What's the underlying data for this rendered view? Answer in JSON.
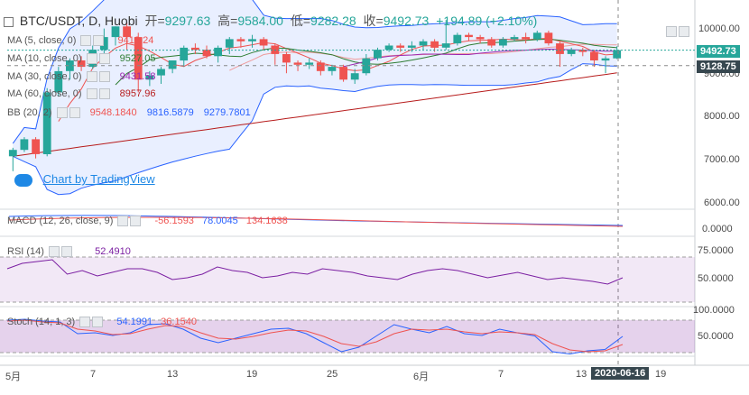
{
  "header": {
    "symbol": "BTC/USDT, D, Huobi",
    "open_label": "开=",
    "open": "9297.63",
    "high_label": "高=",
    "high": "9584.00",
    "low_label": "低=",
    "low": "9282.28",
    "close_label": "收=",
    "close": "9492.73",
    "change": "+194.89 (+2.10%)"
  },
  "indicators": {
    "ma5": {
      "label": "MA (5, close, 0)",
      "value": "9413.24"
    },
    "ma10": {
      "label": "MA (10, close, 0)",
      "value": "9527.05"
    },
    "ma30": {
      "label": "MA (30, close, 0)",
      "value": "9431.58"
    },
    "ma60": {
      "label": "MA (60, close, 0)",
      "value": "8957.96"
    },
    "bb": {
      "label": "BB (20, 2)",
      "basis": "9548.1840",
      "upper": "9816.5879",
      "lower": "9279.7801"
    },
    "macd": {
      "label": "MACD (12, 26, close, 9)",
      "hist": "-56.1593",
      "macd": "78.0045",
      "signal": "134.1638"
    },
    "rsi": {
      "label": "RSI (14)",
      "value": "52.4910"
    },
    "stoch": {
      "label": "Stoch (14, 1, 3)",
      "k": "54.1991",
      "d": "36.1540"
    }
  },
  "branding": {
    "text": "Chart by TradingView"
  },
  "price_axis": {
    "ticks": [
      "10000.00",
      "9000.00",
      "8000.00",
      "7000.00",
      "6000.00"
    ],
    "last_price": "9492.73",
    "crosshair_price": "9128.75"
  },
  "macd_axis": {
    "ticks": [
      "0.0000"
    ]
  },
  "rsi_axis": {
    "ticks": [
      "75.0000",
      "50.0000"
    ]
  },
  "stoch_axis": {
    "ticks": [
      "100.0000",
      "50.0000"
    ]
  },
  "time_axis": {
    "ticks": [
      "5月",
      "7",
      "13",
      "19",
      "25",
      "6月",
      "7",
      "13",
      "19"
    ],
    "crosshair_date": "2020-06-16"
  },
  "colors": {
    "up": "#26a69a",
    "down": "#ef5350",
    "bb": "#2962ff",
    "macd": "#2962ff",
    "signal": "#ef5350",
    "rsi": "#7b1fa2",
    "ma5": "#ef5350",
    "ma10": "#2e7d32",
    "ma30": "#9c27b0",
    "ma60": "#b71c1c"
  },
  "chart_data": {
    "type": "candlestick",
    "title": "BTC/USDT, D, Huobi",
    "ylim": [
      5800,
      10500
    ],
    "candles": [
      [
        7000,
        7150,
        6650,
        7200
      ],
      [
        7150,
        7400,
        7100,
        7450
      ],
      [
        7400,
        7050,
        6950,
        7450
      ],
      [
        7050,
        8500,
        7000,
        8600
      ],
      [
        8500,
        9000,
        8400,
        9100
      ],
      [
        9000,
        9250,
        8800,
        9300
      ],
      [
        9250,
        9100,
        9000,
        9350
      ],
      [
        9100,
        9500,
        9050,
        9600
      ],
      [
        9500,
        9800,
        9300,
        10000
      ],
      [
        9800,
        10050,
        9600,
        10050
      ],
      [
        10050,
        9800,
        9500,
        10150
      ],
      [
        9800,
        8800,
        8500,
        9900
      ],
      [
        8800,
        8900,
        8650,
        9000
      ],
      [
        8900,
        9050,
        8700,
        9100
      ],
      [
        9050,
        9250,
        8950,
        9250
      ],
      [
        9250,
        9550,
        9100,
        9600
      ],
      [
        9550,
        9500,
        9400,
        9650
      ],
      [
        9500,
        9350,
        9300,
        9600
      ],
      [
        9350,
        9550,
        9200,
        9600
      ],
      [
        9550,
        9750,
        9400,
        9800
      ],
      [
        9750,
        9700,
        9550,
        9800
      ],
      [
        9700,
        9750,
        9550,
        9850
      ],
      [
        9750,
        9600,
        9500,
        9800
      ],
      [
        9600,
        9400,
        9150,
        9650
      ],
      [
        9400,
        9200,
        8950,
        9450
      ],
      [
        9200,
        9150,
        9000,
        9250
      ],
      [
        9150,
        9200,
        9050,
        9300
      ],
      [
        9200,
        9000,
        8900,
        9250
      ],
      [
        9000,
        9100,
        8900,
        9150
      ],
      [
        9100,
        8800,
        8750,
        9150
      ],
      [
        8800,
        8950,
        8700,
        9050
      ],
      [
        8950,
        9300,
        8900,
        9400
      ],
      [
        9300,
        9500,
        9250,
        9550
      ],
      [
        9500,
        9600,
        9450,
        9650
      ],
      [
        9600,
        9550,
        9450,
        9650
      ],
      [
        9550,
        9600,
        9450,
        9700
      ],
      [
        9600,
        9700,
        9500,
        9750
      ],
      [
        9700,
        9550,
        9450,
        9750
      ],
      [
        9550,
        9650,
        9500,
        10200
      ],
      [
        9650,
        9850,
        9600,
        9900
      ],
      [
        9850,
        9800,
        9700,
        9900
      ],
      [
        9800,
        9750,
        9650,
        9850
      ],
      [
        9750,
        9600,
        9550,
        9800
      ],
      [
        9600,
        9750,
        9550,
        9800
      ],
      [
        9750,
        9800,
        9700,
        9850
      ],
      [
        9800,
        9750,
        9650,
        9900
      ],
      [
        9750,
        9900,
        9700,
        9950
      ],
      [
        9900,
        9650,
        9600,
        9950
      ],
      [
        9650,
        9400,
        9100,
        9700
      ],
      [
        9400,
        9500,
        9350,
        9550
      ],
      [
        9500,
        9450,
        9350,
        9550
      ],
      [
        9450,
        9250,
        9100,
        9500
      ],
      [
        9250,
        9300,
        8950,
        9350
      ],
      [
        9300,
        9492.73,
        9282.28,
        9584
      ]
    ],
    "time_ticks": [
      "5月",
      "7",
      "13",
      "19",
      "25",
      "6月",
      "7",
      "13",
      "19"
    ],
    "rsi": [
      62,
      68,
      70,
      72,
      56,
      60,
      54,
      58,
      62,
      62,
      58,
      50,
      52,
      56,
      64,
      60,
      58,
      52,
      54,
      58,
      56,
      62,
      60,
      58,
      54,
      52,
      50,
      56,
      60,
      62,
      60,
      56,
      52,
      55,
      58,
      54,
      50,
      52,
      50,
      48,
      45,
      52
    ],
    "stoch_k": [
      90,
      92,
      88,
      86,
      60,
      62,
      56,
      62,
      80,
      82,
      70,
      50,
      40,
      50,
      60,
      70,
      72,
      60,
      40,
      20,
      30,
      55,
      80,
      70,
      62,
      76,
      60,
      56,
      70,
      62,
      55,
      20,
      15,
      22,
      25,
      54
    ],
    "stoch_d": [
      88,
      90,
      86,
      84,
      70,
      66,
      58,
      60,
      70,
      78,
      76,
      62,
      50,
      48,
      54,
      62,
      68,
      66,
      54,
      38,
      32,
      42,
      60,
      70,
      68,
      70,
      64,
      60,
      64,
      62,
      58,
      38,
      24,
      20,
      22,
      36
    ]
  }
}
